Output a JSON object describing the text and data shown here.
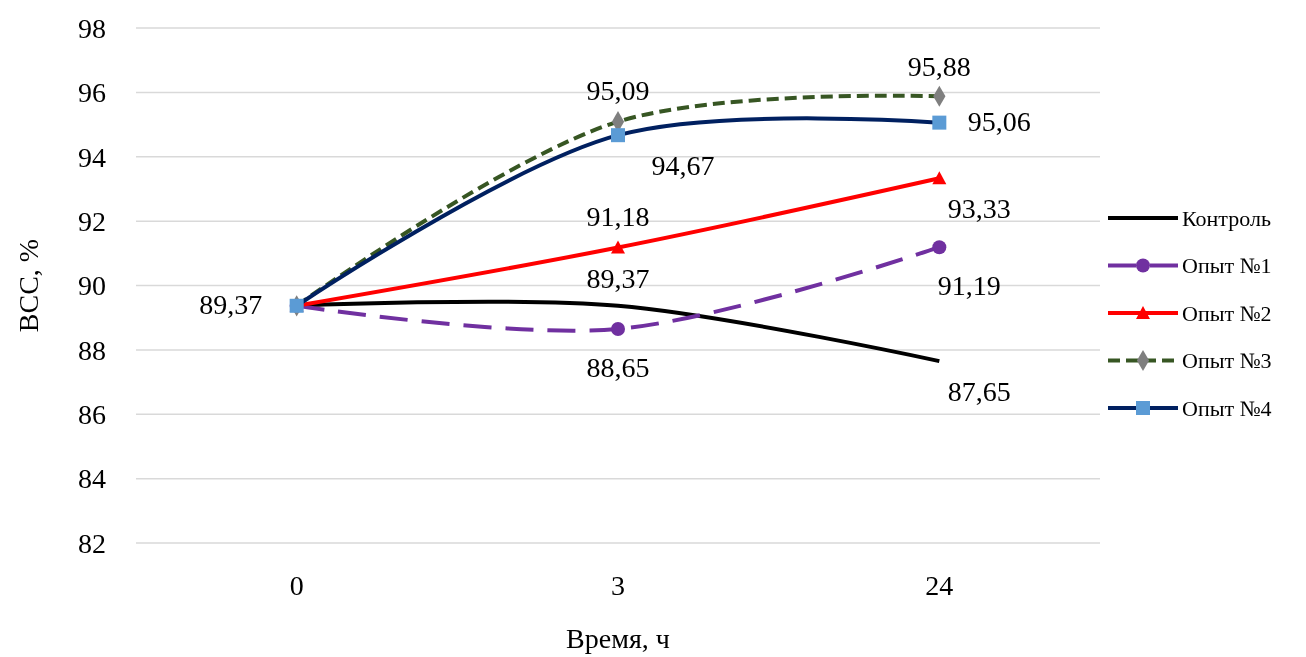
{
  "chart_data": {
    "type": "line",
    "xlabel": "Время, ч",
    "ylabel": "ВСС, %",
    "categories": [
      "0",
      "3",
      "24"
    ],
    "ylim": [
      82,
      98
    ],
    "yticks": [
      82,
      84,
      86,
      88,
      90,
      92,
      94,
      96,
      98
    ],
    "grid": "y",
    "legend": "right",
    "series": [
      {
        "name": "Контроль",
        "color": "#000000",
        "values": [
          89.37,
          89.37,
          87.65
        ],
        "marker": "none",
        "line_style": "solid",
        "value_labels": [
          null,
          "89,37",
          "87,65"
        ]
      },
      {
        "name": "Опыт №1",
        "color": "#7030a0",
        "values": [
          89.37,
          88.65,
          91.19
        ],
        "marker": "circle",
        "line_style": "dashed",
        "value_labels": [
          null,
          "88,65",
          "91,19"
        ]
      },
      {
        "name": "Опыт №2",
        "color": "#ff0000",
        "values": [
          89.37,
          91.18,
          93.33
        ],
        "marker": "triangle",
        "line_style": "solid",
        "value_labels": [
          null,
          "91,18",
          "93,33"
        ]
      },
      {
        "name": "Опыт №3",
        "color": "#375623",
        "values": [
          89.37,
          95.09,
          95.88
        ],
        "marker": "diamond",
        "line_style": "dashed",
        "value_labels": [
          null,
          "95,09",
          "95,88"
        ]
      },
      {
        "name": "Опыт №4",
        "color": "#002060",
        "values": [
          89.37,
          94.67,
          95.06
        ],
        "marker": "square",
        "line_style": "solid",
        "value_labels": [
          "89,37",
          "94,67",
          "95,06"
        ]
      }
    ]
  }
}
